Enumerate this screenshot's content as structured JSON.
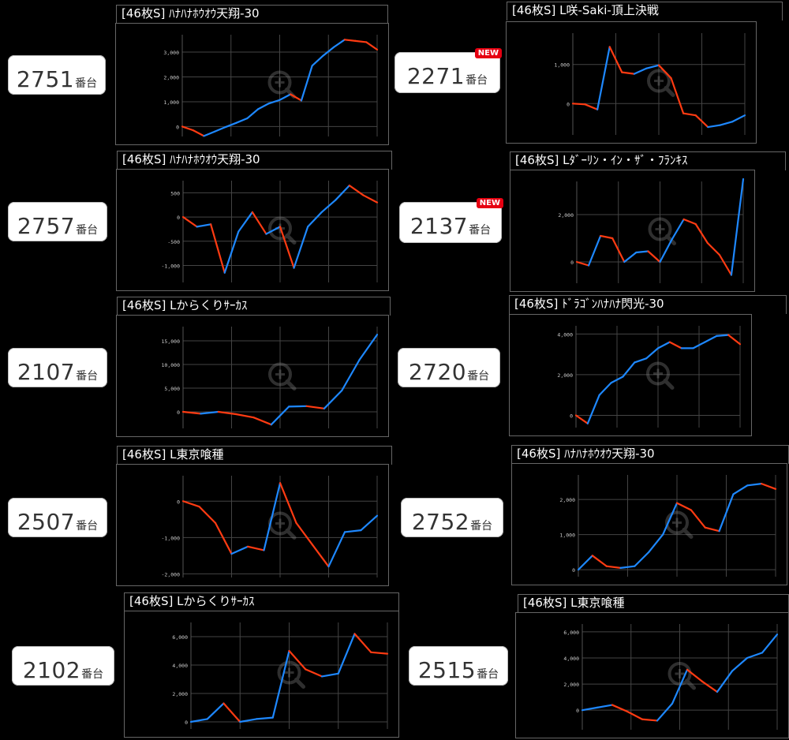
{
  "colors": {
    "up": "#1e88ff",
    "down": "#ff3b12",
    "grid": "#444444",
    "tick": "#cccccc"
  },
  "panels": [
    {
      "machine_no": "2751",
      "unit": "番台",
      "title": "[46枚S] ﾊﾅﾊﾅﾎｳｵｳ天翔-30",
      "new": "",
      "chart_data": {
        "type": "line",
        "ylim": [
          -400,
          3700
        ],
        "yticks": [
          "0",
          "1,000",
          "2,000",
          "3,000"
        ],
        "ytick_values": [
          0,
          1000,
          2000,
          3000
        ],
        "values": [
          0,
          -150,
          -380,
          -200,
          -20,
          150,
          330,
          700,
          930,
          1070,
          1300,
          1050,
          2450,
          2850,
          3200,
          3500,
          3450,
          3400,
          3100
        ]
      }
    },
    {
      "machine_no": "2271",
      "unit": "番台",
      "title": "[46枚S] L咲-Saki-頂上決戦",
      "new": "NEW",
      "chart_data": {
        "type": "line",
        "ylim": [
          -800,
          1800
        ],
        "yticks": [
          "0",
          "1,000"
        ],
        "ytick_values": [
          0,
          1000
        ],
        "values": [
          0,
          -20,
          -150,
          1450,
          800,
          760,
          900,
          980,
          650,
          -250,
          -300,
          -600,
          -550,
          -460,
          -300
        ]
      }
    },
    {
      "machine_no": "2757",
      "unit": "番台",
      "title": "[46枚S] ﾊﾅﾊﾅﾎｳｵｳ天翔-30",
      "new": "",
      "chart_data": {
        "type": "line",
        "ylim": [
          -1350,
          750
        ],
        "yticks": [
          "500",
          "0",
          "-500",
          "-1,000"
        ],
        "ytick_values": [
          500,
          0,
          -500,
          -1000
        ],
        "values": [
          0,
          -200,
          -150,
          -1150,
          -300,
          100,
          -350,
          -200,
          -1050,
          -200,
          100,
          350,
          650,
          450,
          300
        ]
      }
    },
    {
      "machine_no": "2137",
      "unit": "番台",
      "title": "[46枚S] Lﾀﾞｰﾘﾝ・ｲﾝ・ｻﾞ・ﾌﾗﾝｷｽ",
      "new": "NEW",
      "chart_data": {
        "type": "line",
        "ylim": [
          -900,
          3400
        ],
        "yticks": [
          "2,000",
          "0"
        ],
        "ytick_values": [
          2000,
          0
        ],
        "values": [
          0,
          -150,
          1100,
          1000,
          0,
          400,
          450,
          0,
          950,
          1800,
          1600,
          800,
          300,
          -550,
          3500
        ]
      }
    },
    {
      "machine_no": "2107",
      "unit": "番台",
      "title": "[46枚S] Lからくりｻｰｶｽ",
      "new": "",
      "chart_data": {
        "type": "line",
        "ylim": [
          -3500,
          18000
        ],
        "yticks": [
          "15,000",
          "10,000",
          "5,000",
          "0"
        ],
        "ytick_values": [
          15000,
          10000,
          5000,
          0
        ],
        "values": [
          0,
          -400,
          0,
          -500,
          -1200,
          -2700,
          1100,
          1200,
          700,
          4500,
          11000,
          16300
        ]
      }
    },
    {
      "machine_no": "2720",
      "unit": "番台",
      "title": "[46枚S] ﾄﾞﾗｺﾞﾝﾊﾅﾊﾅ閃光-30",
      "new": "",
      "chart_data": {
        "type": "line",
        "ylim": [
          -600,
          4400
        ],
        "yticks": [
          "4,000",
          "2,000",
          "0"
        ],
        "ytick_values": [
          4000,
          2000,
          0
        ],
        "values": [
          0,
          -400,
          1000,
          1600,
          1900,
          2600,
          2800,
          3300,
          3600,
          3300,
          3300,
          3600,
          3900,
          3950,
          3500
        ]
      }
    },
    {
      "machine_no": "2507",
      "unit": "番台",
      "title": "[46枚S] L東京喰種",
      "new": "",
      "chart_data": {
        "type": "line",
        "ylim": [
          -2100,
          700
        ],
        "yticks": [
          "0",
          "-1,000",
          "-2,000"
        ],
        "ytick_values": [
          0,
          -1000,
          -2000
        ],
        "values": [
          0,
          -150,
          -600,
          -1450,
          -1250,
          -1350,
          500,
          -600,
          -1200,
          -1800,
          -850,
          -800,
          -400
        ]
      }
    },
    {
      "machine_no": "2752",
      "unit": "番台",
      "title": "[46枚S] ﾊﾅﾊﾅﾎｳｵｳ天翔-30",
      "new": "",
      "chart_data": {
        "type": "line",
        "ylim": [
          -200,
          2700
        ],
        "yticks": [
          "2,000",
          "1,000",
          "0"
        ],
        "ytick_values": [
          2000,
          1000,
          0
        ],
        "values": [
          0,
          400,
          100,
          50,
          100,
          500,
          1000,
          1900,
          1700,
          1200,
          1100,
          2150,
          2400,
          2450,
          2300
        ]
      }
    },
    {
      "machine_no": "2102",
      "unit": "番台",
      "title": "[46枚S] Lからくりｻｰｶｽ",
      "new": "",
      "chart_data": {
        "type": "line",
        "ylim": [
          -500,
          7000
        ],
        "yticks": [
          "6,000",
          "4,000",
          "2,000",
          "0"
        ],
        "ytick_values": [
          6000,
          4000,
          2000,
          0
        ],
        "values": [
          0,
          200,
          1300,
          0,
          200,
          300,
          5000,
          3700,
          3200,
          3400,
          6200,
          4900,
          4800
        ]
      }
    },
    {
      "machine_no": "2515",
      "unit": "番台",
      "title": "[46枚S] L東京喰種",
      "new": "",
      "chart_data": {
        "type": "line",
        "ylim": [
          -1500,
          6600
        ],
        "yticks": [
          "6,000",
          "4,000",
          "2,000",
          "0"
        ],
        "ytick_values": [
          6000,
          4000,
          2000,
          0
        ],
        "values": [
          0,
          200,
          400,
          -100,
          -700,
          -800,
          500,
          3100,
          2200,
          1400,
          3000,
          4000,
          4400,
          5800
        ]
      }
    }
  ]
}
